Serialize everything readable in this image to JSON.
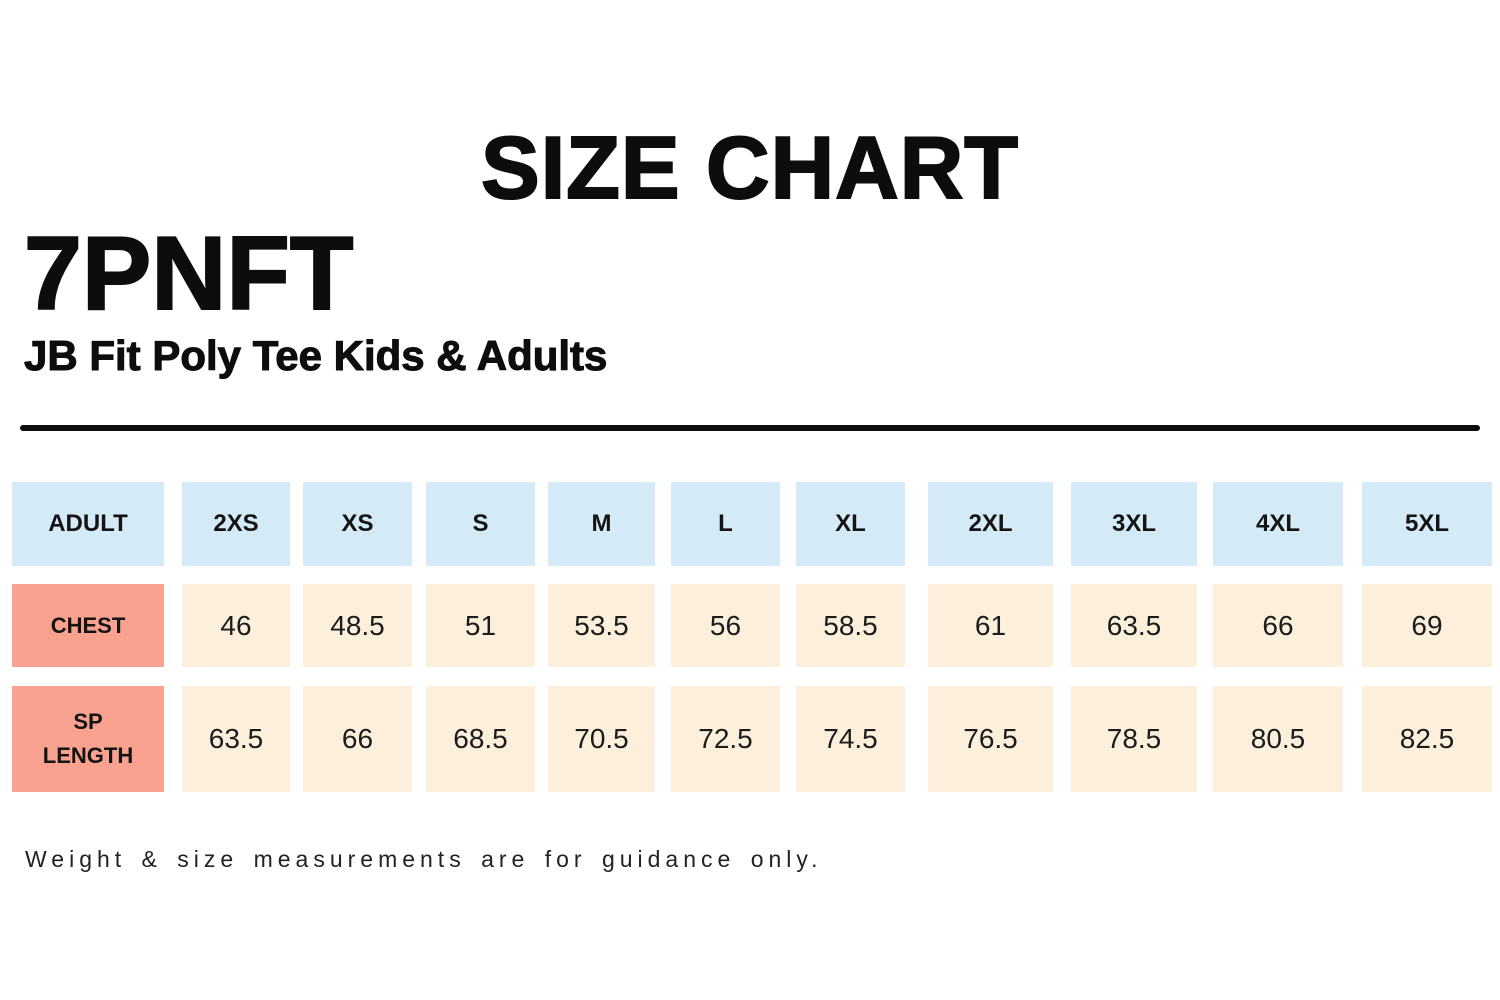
{
  "header": {
    "title": "SIZE CHART",
    "product_code": "7PNFT",
    "product_name": "JB Fit Poly Tee Kids & Adults"
  },
  "footer": {
    "note": "Weight & size measurements are for guidance only."
  },
  "colors": {
    "size_header_bg": "#d5eaf7",
    "row_label_bg": "#f8a28f",
    "value_cell_bg": "#fcf0dd",
    "heading_text": "#0d0d0d",
    "value_text": "#1c1c1c"
  },
  "chart_data": {
    "type": "table",
    "title": "SIZE CHART",
    "columns": [
      "ADULT",
      "2XS",
      "XS",
      "S",
      "M",
      "L",
      "XL",
      "2XL",
      "3XL",
      "4XL",
      "5XL"
    ],
    "rows": [
      {
        "label": "CHEST",
        "values": [
          46,
          48.5,
          51,
          53.5,
          56,
          58.5,
          61,
          63.5,
          66,
          69
        ]
      },
      {
        "label": "SP LENGTH",
        "values": [
          63.5,
          66,
          68.5,
          70.5,
          72.5,
          74.5,
          76.5,
          78.5,
          80.5,
          82.5
        ]
      }
    ]
  }
}
